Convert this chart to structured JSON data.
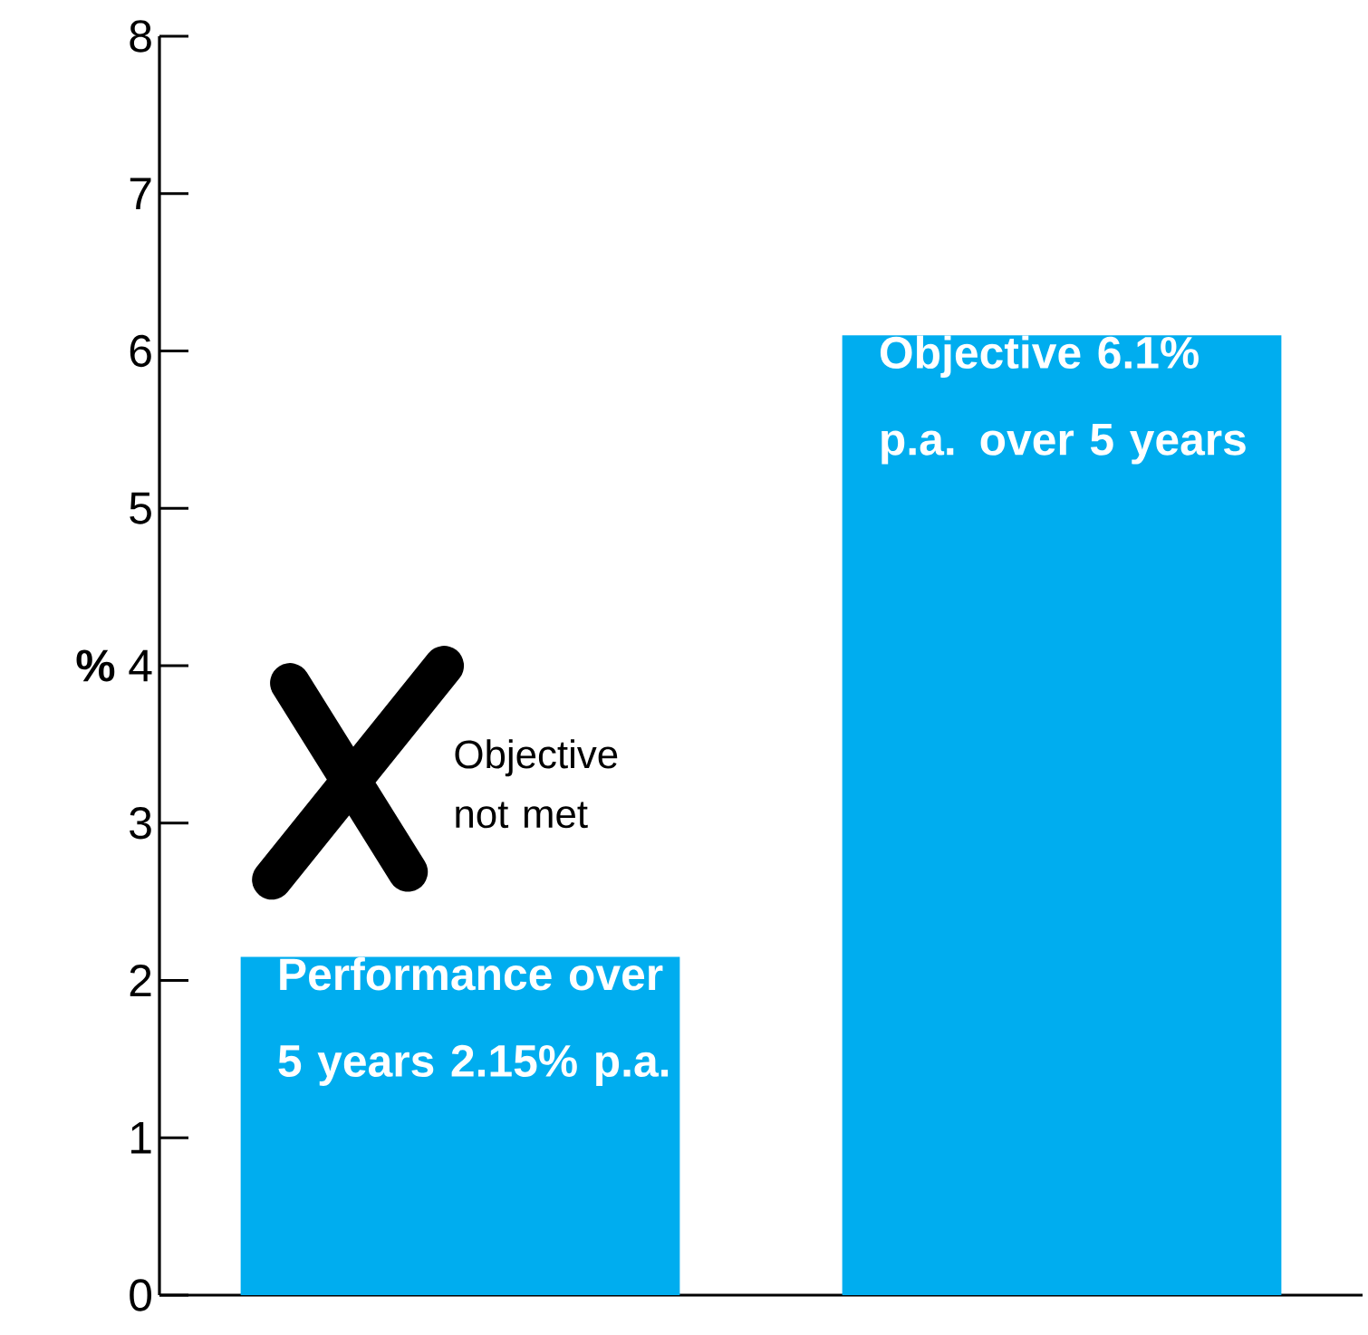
{
  "chart_data": {
    "type": "bar",
    "categories": [
      null,
      null
    ],
    "values": [
      2.15,
      6.1
    ],
    "color": "#00adef",
    "ylabel": "%",
    "ylim": [
      0,
      8
    ],
    "yticks": [
      0,
      1,
      2,
      3,
      4,
      5,
      6,
      7,
      8
    ],
    "value_labels": [
      "Performance over 5 years 2.15% p.a.",
      "Objective 6.1% p.a. over 5 years"
    ],
    "annotations": [
      "Objective not met"
    ]
  }
}
